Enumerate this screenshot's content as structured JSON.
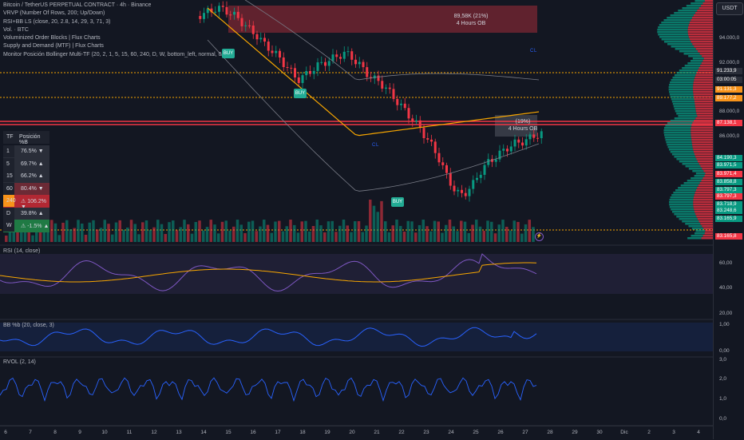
{
  "header": {
    "legend_lines": [
      "Bitcoin / TetherUS PERPETUAL CONTRACT · 4h · Binance",
      "VRVP (Number Of Rows, 200; Up/Down)",
      "RSI+BB LS (close, 20, 2.8, 14, 29, 3, 71, 3)",
      "Vol. · BTC",
      "Voluminized Order Blocks | Flux Charts",
      "Supply and Demand (MTF) | Flux Charts",
      "Monitor Posición Bollinger Multi-TF (20, 2, 1, 5, 15, 60, 240, D, W, bottom_left, normal, 0, 0)"
    ]
  },
  "currency_button": "USDT",
  "price_axis": {
    "labels": [
      {
        "text": "94.000,0"
      },
      {
        "text": "92.000,0"
      },
      {
        "text": "88.000,0"
      },
      {
        "text": "86.000,0"
      }
    ],
    "tags": [
      {
        "text": "91.233,9",
        "color": "#2a2e39"
      },
      {
        "text": "03:00:05",
        "color": "#2a2e39"
      },
      {
        "text": "91.131,3",
        "color": "#f7931a"
      },
      {
        "text": "89.177,2",
        "color": "#f7931a"
      },
      {
        "text": "87.138,1",
        "color": "#f23645"
      },
      {
        "text": "84.190,3",
        "color": "#089981"
      },
      {
        "text": "83.971,5",
        "color": "#089981"
      },
      {
        "text": "83.971,4",
        "color": "#f23645"
      },
      {
        "text": "83.858,8",
        "color": "#089981"
      },
      {
        "text": "83.797,3",
        "color": "#089981"
      },
      {
        "text": "83.797,3",
        "color": "#f23645"
      },
      {
        "text": "83.718,9",
        "color": "#089981"
      },
      {
        "text": "83.248,6",
        "color": "#089981"
      },
      {
        "text": "83.165,9",
        "color": "#089981"
      },
      {
        "text": "83.165,8",
        "color": "#f23645"
      }
    ]
  },
  "order_blocks": [
    {
      "line1": "89,58K (21%)",
      "line2": "4 Hours OB"
    },
    {
      "line1": "(19%)",
      "line2": "4 Hours OB"
    }
  ],
  "buy_label": "BUY",
  "candle_labels": [
    "C",
    "L",
    "C",
    "L"
  ],
  "monitor_table": {
    "header_tf": "TF",
    "header_pos": "Posición %B",
    "rows": [
      {
        "tf": "1",
        "value": "76.5% ▼",
        "bg": "#2a2e39",
        "tfbg": "#1e222d"
      },
      {
        "tf": "5",
        "value": "69.7% ▲",
        "bg": "#2a2e39",
        "tfbg": "#1e222d"
      },
      {
        "tf": "15",
        "value": "66.2% ▲",
        "bg": "#2a2e39",
        "tfbg": "#1e222d"
      },
      {
        "tf": "60",
        "value": "80.4% ▼",
        "bg": "#6b2a35",
        "tfbg": "#1e222d"
      },
      {
        "tf": "240",
        "value": "⚠ 106.2% ▼",
        "bg": "#b22833",
        "tfbg": "#f7931a"
      },
      {
        "tf": "D",
        "value": "39.8% ▲",
        "bg": "#2a2e39",
        "tfbg": "#1e222d"
      },
      {
        "tf": "W",
        "value": "⚠ -1.5% ▲",
        "bg": "#1f7a44",
        "tfbg": "#1e222d"
      }
    ]
  },
  "indicators": {
    "rsi": {
      "label": "RSI (14, close)",
      "levels": [
        "60,00",
        "40,00",
        "20,00"
      ]
    },
    "bb": {
      "label": "BB %b (20, close, 3)",
      "levels": [
        "1,00",
        "0,00"
      ]
    },
    "rvol": {
      "label": "RVOL (2, 14)",
      "levels": [
        "3,0",
        "2,0",
        "1,0",
        "0,0"
      ]
    }
  },
  "time_axis": {
    "labels": [
      "6",
      "7",
      "8",
      "9",
      "10",
      "11",
      "12",
      "13",
      "14",
      "15",
      "16",
      "17",
      "18",
      "19",
      "20",
      "21",
      "22",
      "23",
      "24",
      "25",
      "26",
      "27",
      "28",
      "29",
      "30",
      "Dic",
      "2",
      "3",
      "4"
    ]
  },
  "colors": {
    "up": "#089981",
    "down": "#f23645",
    "ma": "#f7a600",
    "band": "#787b86",
    "rsi": "#7e57c2",
    "bb": "#2962ff"
  }
}
